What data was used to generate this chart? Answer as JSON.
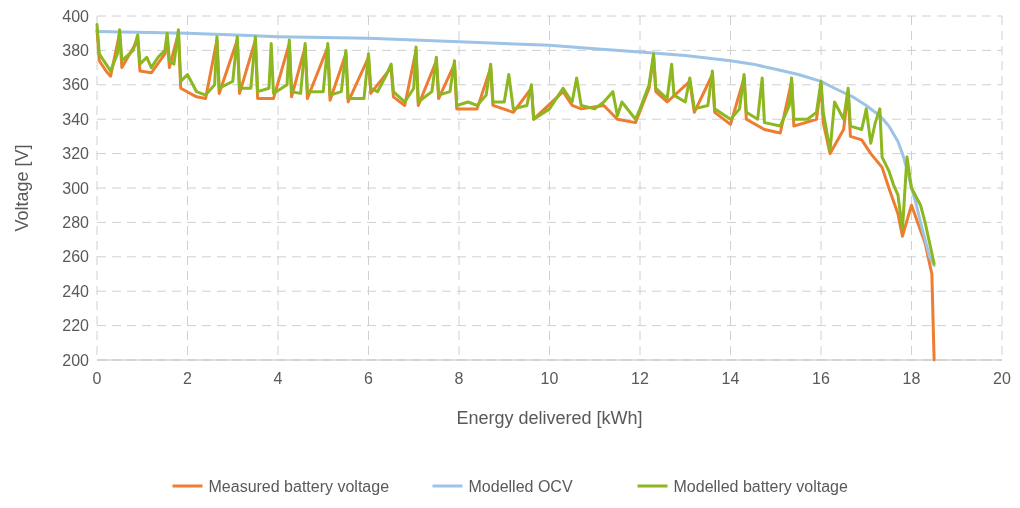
{
  "chart_data": {
    "type": "line",
    "xlabel": "Energy delivered [kWh]",
    "ylabel": "Voltage [V]",
    "xlim": [
      0,
      20
    ],
    "xticks": [
      0,
      2,
      4,
      6,
      8,
      10,
      12,
      14,
      16,
      18,
      20
    ],
    "ylim": [
      200,
      400
    ],
    "yticks": [
      200,
      220,
      240,
      260,
      280,
      300,
      320,
      340,
      360,
      380,
      400
    ],
    "grid": true,
    "legend": "bottom",
    "line_style": "solid",
    "marker": "none",
    "series": [
      {
        "name": "Measured battery voltage",
        "color": "#ed7d31",
        "x": [
          0,
          0.05,
          0.2,
          0.3,
          0.5,
          0.55,
          0.9,
          0.95,
          1.2,
          1.5,
          1.55,
          1.6,
          1.8,
          1.85,
          2.2,
          2.4,
          2.65,
          2.7,
          3.1,
          3.15,
          3.5,
          3.55,
          3.9,
          4.25,
          4.3,
          4.6,
          4.65,
          5.1,
          5.15,
          5.5,
          5.55,
          6.0,
          6.05,
          6.5,
          6.55,
          6.8,
          7.05,
          7.1,
          7.5,
          7.55,
          7.9,
          7.95,
          8.4,
          8.7,
          8.75,
          9.2,
          9.6,
          9.65,
          10.3,
          10.5,
          10.7,
          11.2,
          11.5,
          11.9,
          12.2,
          12.3,
          12.35,
          12.6,
          13.1,
          13.2,
          13.6,
          13.65,
          14.0,
          14.3,
          14.35,
          14.75,
          15.1,
          15.35,
          15.4,
          15.9,
          16.0,
          16.05,
          16.2,
          16.5,
          16.6,
          16.65,
          16.9,
          17.1,
          17.35,
          17.5,
          17.7,
          17.8,
          18.0,
          18.3,
          18.45,
          18.48,
          18.5
        ],
        "values": [
          392,
          374,
          368,
          365,
          390,
          370,
          386,
          368,
          367,
          378,
          388,
          370,
          390,
          358,
          353,
          352,
          386,
          355,
          386,
          355,
          386,
          352,
          352,
          384,
          353,
          382,
          352,
          382,
          351,
          378,
          350,
          376,
          355,
          370,
          353,
          348,
          380,
          348,
          374,
          352,
          372,
          346,
          346,
          370,
          348,
          344,
          358,
          340,
          356,
          348,
          346,
          348,
          340,
          338,
          358,
          376,
          356,
          350,
          362,
          344,
          366,
          344,
          337,
          364,
          340,
          334,
          332,
          362,
          336,
          340,
          360,
          338,
          320,
          334,
          356,
          330,
          328,
          320,
          312,
          300,
          285,
          272,
          290,
          268,
          250,
          220,
          200
        ]
      },
      {
        "name": "Modelled OCV",
        "color": "#9dc3e6",
        "x": [
          0,
          2,
          4,
          6,
          8,
          10,
          11,
          12,
          13,
          14,
          14.5,
          15,
          15.5,
          16,
          16.3,
          16.7,
          17,
          17.3,
          17.5,
          17.7,
          17.8,
          17.9,
          18,
          18.1,
          18.2,
          18.3,
          18.4,
          18.5
        ],
        "values": [
          391,
          390,
          388,
          387,
          385,
          383,
          381,
          379,
          377,
          374,
          372,
          369,
          366,
          362,
          358,
          353,
          348,
          342,
          336,
          327,
          320,
          311,
          300,
          291,
          280,
          270,
          260,
          255
        ]
      },
      {
        "name": "Modelled battery voltage",
        "color": "#8db720",
        "x": [
          0,
          0.05,
          0.2,
          0.3,
          0.45,
          0.5,
          0.55,
          0.8,
          0.9,
          0.95,
          1.1,
          1.2,
          1.35,
          1.5,
          1.55,
          1.6,
          1.7,
          1.8,
          1.85,
          2.0,
          2.2,
          2.4,
          2.6,
          2.65,
          2.7,
          3.0,
          3.1,
          3.15,
          3.4,
          3.5,
          3.55,
          3.8,
          3.85,
          3.9,
          4.2,
          4.25,
          4.3,
          4.5,
          4.6,
          4.65,
          5.0,
          5.1,
          5.15,
          5.4,
          5.5,
          5.55,
          5.9,
          6.0,
          6.05,
          6.2,
          6.4,
          6.5,
          6.55,
          6.8,
          7.0,
          7.05,
          7.1,
          7.4,
          7.5,
          7.55,
          7.8,
          7.9,
          7.95,
          8.2,
          8.4,
          8.6,
          8.7,
          8.75,
          9.0,
          9.1,
          9.2,
          9.5,
          9.6,
          9.65,
          10.0,
          10.2,
          10.3,
          10.5,
          10.6,
          10.7,
          11.0,
          11.2,
          11.4,
          11.5,
          11.6,
          11.9,
          12.0,
          12.2,
          12.3,
          12.35,
          12.6,
          12.7,
          12.75,
          13.0,
          13.1,
          13.2,
          13.5,
          13.6,
          13.65,
          14.0,
          14.2,
          14.3,
          14.35,
          14.6,
          14.7,
          14.75,
          15.1,
          15.3,
          15.35,
          15.4,
          15.7,
          15.9,
          16.0,
          16.05,
          16.2,
          16.3,
          16.5,
          16.6,
          16.65,
          16.9,
          17.0,
          17.1,
          17.2,
          17.3,
          17.35,
          17.5,
          17.6,
          17.7,
          17.8,
          17.9,
          18.0,
          18.2,
          18.3,
          18.45,
          18.5
        ],
        "values": [
          395,
          378,
          372,
          368,
          378,
          392,
          374,
          380,
          389,
          372,
          376,
          370,
          376,
          380,
          390,
          374,
          372,
          392,
          362,
          366,
          356,
          354,
          360,
          388,
          358,
          362,
          388,
          358,
          358,
          388,
          356,
          358,
          384,
          355,
          360,
          386,
          356,
          355,
          384,
          356,
          356,
          384,
          354,
          356,
          380,
          352,
          352,
          378,
          358,
          356,
          366,
          372,
          356,
          350,
          358,
          382,
          350,
          356,
          376,
          354,
          356,
          374,
          348,
          350,
          348,
          354,
          372,
          350,
          350,
          366,
          346,
          348,
          360,
          340,
          346,
          354,
          358,
          350,
          364,
          348,
          346,
          350,
          356,
          342,
          350,
          340,
          346,
          360,
          378,
          358,
          352,
          372,
          354,
          350,
          364,
          346,
          348,
          368,
          346,
          340,
          346,
          366,
          344,
          340,
          364,
          338,
          336,
          348,
          364,
          340,
          340,
          344,
          362,
          344,
          322,
          350,
          340,
          358,
          336,
          334,
          346,
          326,
          338,
          346,
          318,
          310,
          302,
          296,
          276,
          318,
          300,
          290,
          280,
          262,
          256
        ]
      }
    ]
  }
}
